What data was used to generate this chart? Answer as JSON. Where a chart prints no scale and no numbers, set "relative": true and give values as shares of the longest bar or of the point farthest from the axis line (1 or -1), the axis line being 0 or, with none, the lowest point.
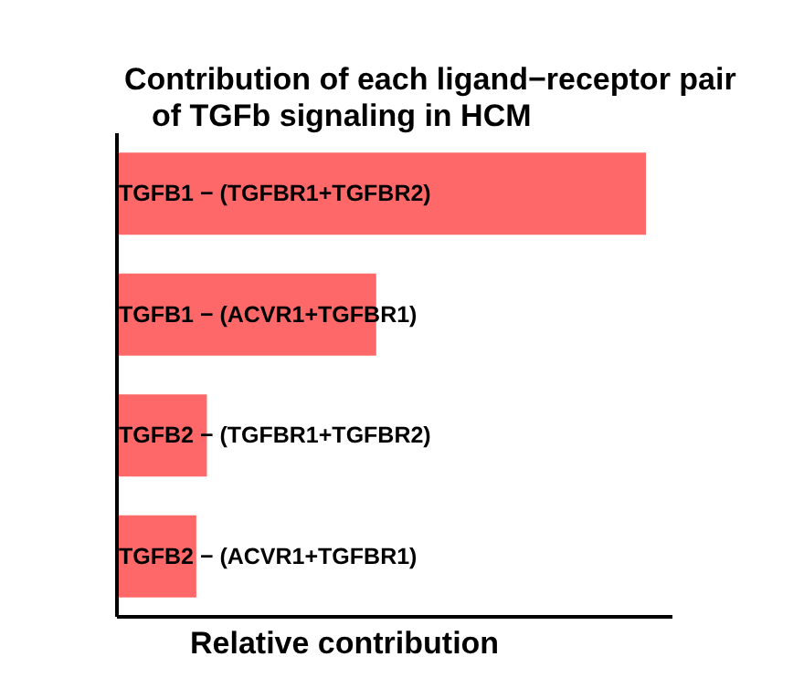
{
  "chart_data": {
    "type": "bar",
    "orientation": "horizontal",
    "relative": true,
    "title": "Contribution of each ligand−receptor pair\nof TGFb signaling in HCM",
    "xlabel": "Relative contribution",
    "categories": [
      "TGFB1 − (TGFBR1+TGFBR2)",
      "TGFB1 − (ACVR1+TGFBR1)",
      "TGFB2 − (TGFBR1+TGFBR2)",
      "TGFB2 − (ACVR1+TGFBR1)"
    ],
    "values": [
      1,
      0.49,
      0.17,
      0.15
    ],
    "color": "#fe6868",
    "grid": false,
    "legend": false
  }
}
